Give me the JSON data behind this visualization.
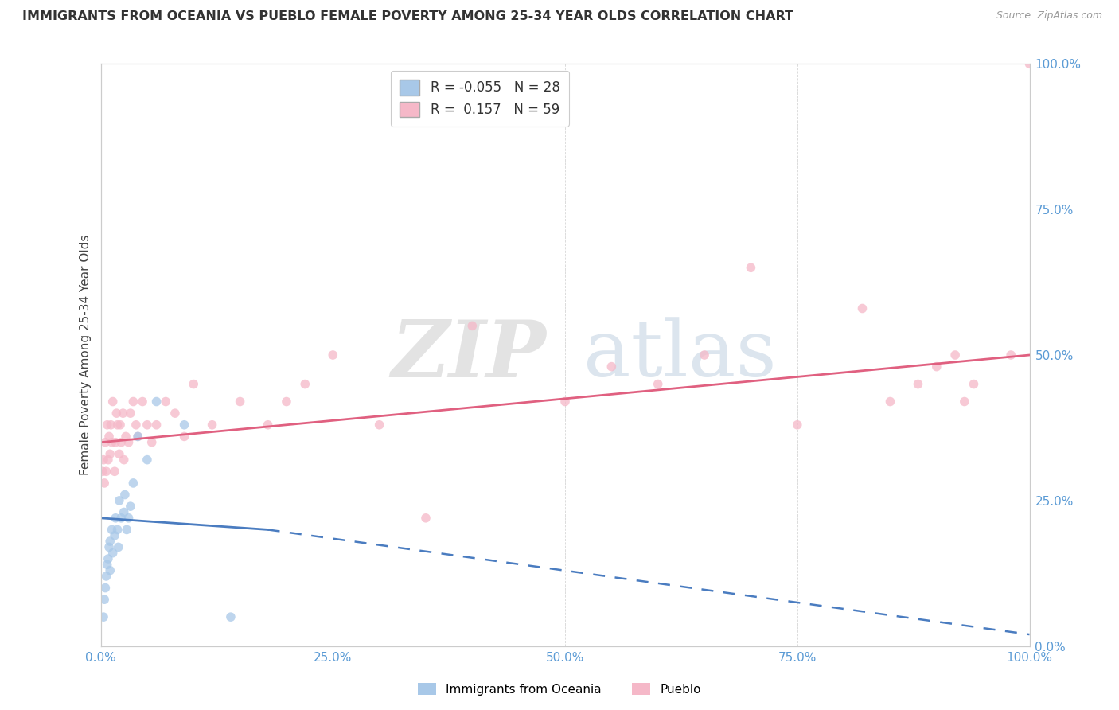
{
  "title": "IMMIGRANTS FROM OCEANIA VS PUEBLO FEMALE POVERTY AMONG 25-34 YEAR OLDS CORRELATION CHART",
  "source": "Source: ZipAtlas.com",
  "ylabel": "Female Poverty Among 25-34 Year Olds",
  "legend_label1": "Immigrants from Oceania",
  "legend_label2": "Pueblo",
  "R1": -0.055,
  "N1": 28,
  "R2": 0.157,
  "N2": 59,
  "color1": "#a8c8e8",
  "color2": "#f5b8c8",
  "trendline1_solid_color": "#4a7cc0",
  "trendline1_dash_color": "#7aaad8",
  "trendline2_color": "#e06080",
  "xlim": [
    0.0,
    1.0
  ],
  "ylim": [
    0.0,
    1.0
  ],
  "xticks": [
    0.0,
    0.25,
    0.5,
    0.75,
    1.0
  ],
  "xticklabels": [
    "0.0%",
    "25.0%",
    "50.0%",
    "75.0%",
    "100.0%"
  ],
  "yticks": [
    0.0,
    0.25,
    0.5,
    0.75,
    1.0
  ],
  "yticklabels": [
    "0.0%",
    "25.0%",
    "50.0%",
    "75.0%",
    "100.0%"
  ],
  "scatter1_x": [
    0.003,
    0.004,
    0.005,
    0.006,
    0.007,
    0.008,
    0.009,
    0.01,
    0.01,
    0.012,
    0.013,
    0.015,
    0.016,
    0.018,
    0.019,
    0.02,
    0.022,
    0.025,
    0.026,
    0.028,
    0.03,
    0.032,
    0.035,
    0.04,
    0.05,
    0.06,
    0.09,
    0.14
  ],
  "scatter1_y": [
    0.05,
    0.08,
    0.1,
    0.12,
    0.14,
    0.15,
    0.17,
    0.13,
    0.18,
    0.2,
    0.16,
    0.19,
    0.22,
    0.2,
    0.17,
    0.25,
    0.22,
    0.23,
    0.26,
    0.2,
    0.22,
    0.24,
    0.28,
    0.36,
    0.32,
    0.42,
    0.38,
    0.05
  ],
  "scatter2_x": [
    0.002,
    0.003,
    0.004,
    0.005,
    0.006,
    0.007,
    0.008,
    0.009,
    0.01,
    0.011,
    0.012,
    0.013,
    0.015,
    0.016,
    0.017,
    0.018,
    0.02,
    0.021,
    0.022,
    0.024,
    0.025,
    0.027,
    0.03,
    0.032,
    0.035,
    0.038,
    0.04,
    0.045,
    0.05,
    0.055,
    0.06,
    0.07,
    0.08,
    0.09,
    0.1,
    0.12,
    0.15,
    0.18,
    0.2,
    0.22,
    0.25,
    0.3,
    0.35,
    0.4,
    0.5,
    0.55,
    0.6,
    0.65,
    0.7,
    0.75,
    0.82,
    0.85,
    0.88,
    0.9,
    0.92,
    0.93,
    0.94,
    0.98,
    1.0
  ],
  "scatter2_y": [
    0.3,
    0.32,
    0.28,
    0.35,
    0.3,
    0.38,
    0.32,
    0.36,
    0.33,
    0.38,
    0.35,
    0.42,
    0.3,
    0.35,
    0.4,
    0.38,
    0.33,
    0.38,
    0.35,
    0.4,
    0.32,
    0.36,
    0.35,
    0.4,
    0.42,
    0.38,
    0.36,
    0.42,
    0.38,
    0.35,
    0.38,
    0.42,
    0.4,
    0.36,
    0.45,
    0.38,
    0.42,
    0.38,
    0.42,
    0.45,
    0.5,
    0.38,
    0.22,
    0.55,
    0.42,
    0.48,
    0.45,
    0.5,
    0.65,
    0.38,
    0.58,
    0.42,
    0.45,
    0.48,
    0.5,
    0.42,
    0.45,
    0.5,
    1.0
  ],
  "trend1_x0": 0.0,
  "trend1_y0": 0.22,
  "trend1_x1": 0.18,
  "trend1_y1": 0.2,
  "trend1_xdash0": 0.18,
  "trend1_ydash0": 0.2,
  "trend1_xdash1": 1.0,
  "trend1_ydash1": 0.02,
  "trend2_x0": 0.0,
  "trend2_y0": 0.35,
  "trend2_x1": 1.0,
  "trend2_y1": 0.5
}
